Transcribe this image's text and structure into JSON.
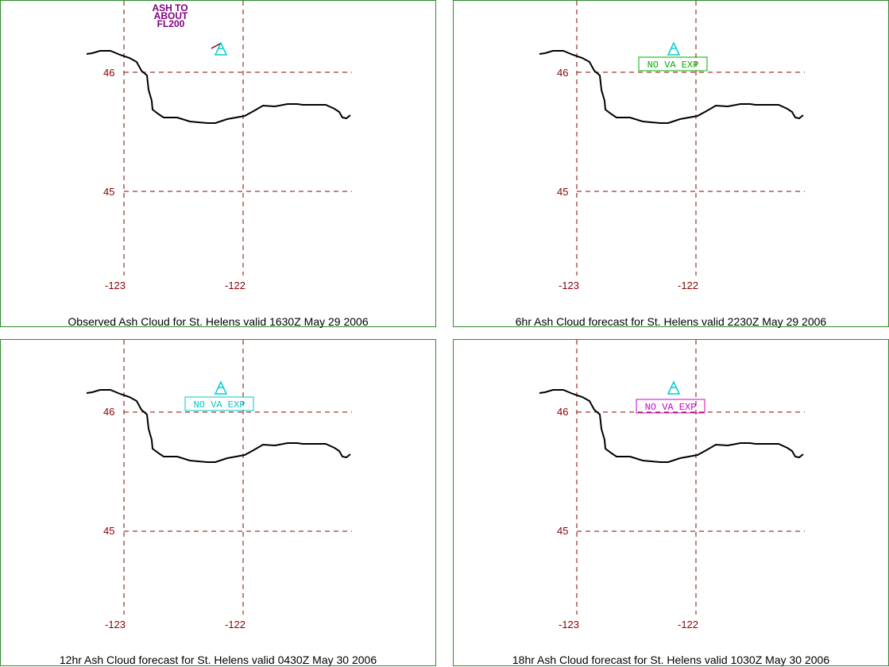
{
  "axis_labels": {
    "lat_46": "46",
    "lat_45": "45",
    "lon_123": "-123",
    "lon_122": "-122"
  },
  "colors": {
    "grid": "#8b0000",
    "coast": "#000000",
    "border": "#2e8b2e",
    "volcano": "#00d0d0",
    "observed_text": "#800080",
    "box_green": "#00b000",
    "box_cyan": "#00c8c8",
    "box_magenta": "#cc00cc"
  },
  "panels": [
    {
      "caption": "Observed Ash Cloud for St.  Helens valid 1630Z May 29 2006",
      "annotation": {
        "type": "text",
        "lines": [
          "ASH TO",
          "ABOUT",
          "FL200"
        ]
      }
    },
    {
      "caption": "6hr Ash Cloud forecast for St.  Helens valid 2230Z May 29 2006",
      "annotation": {
        "type": "box",
        "label": "NO VA EXP",
        "color": "#00b000"
      }
    },
    {
      "caption": "12hr Ash Cloud forecast for St.  Helens valid 0430Z May 30 2006",
      "annotation": {
        "type": "box",
        "label": "NO VA EXP",
        "color": "#00c8c8"
      }
    },
    {
      "caption": "18hr Ash Cloud forecast for St.  Helens valid 1030Z May 30 2006",
      "annotation": {
        "type": "box",
        "label": "NO VA EXP",
        "color": "#cc00cc"
      }
    }
  ]
}
